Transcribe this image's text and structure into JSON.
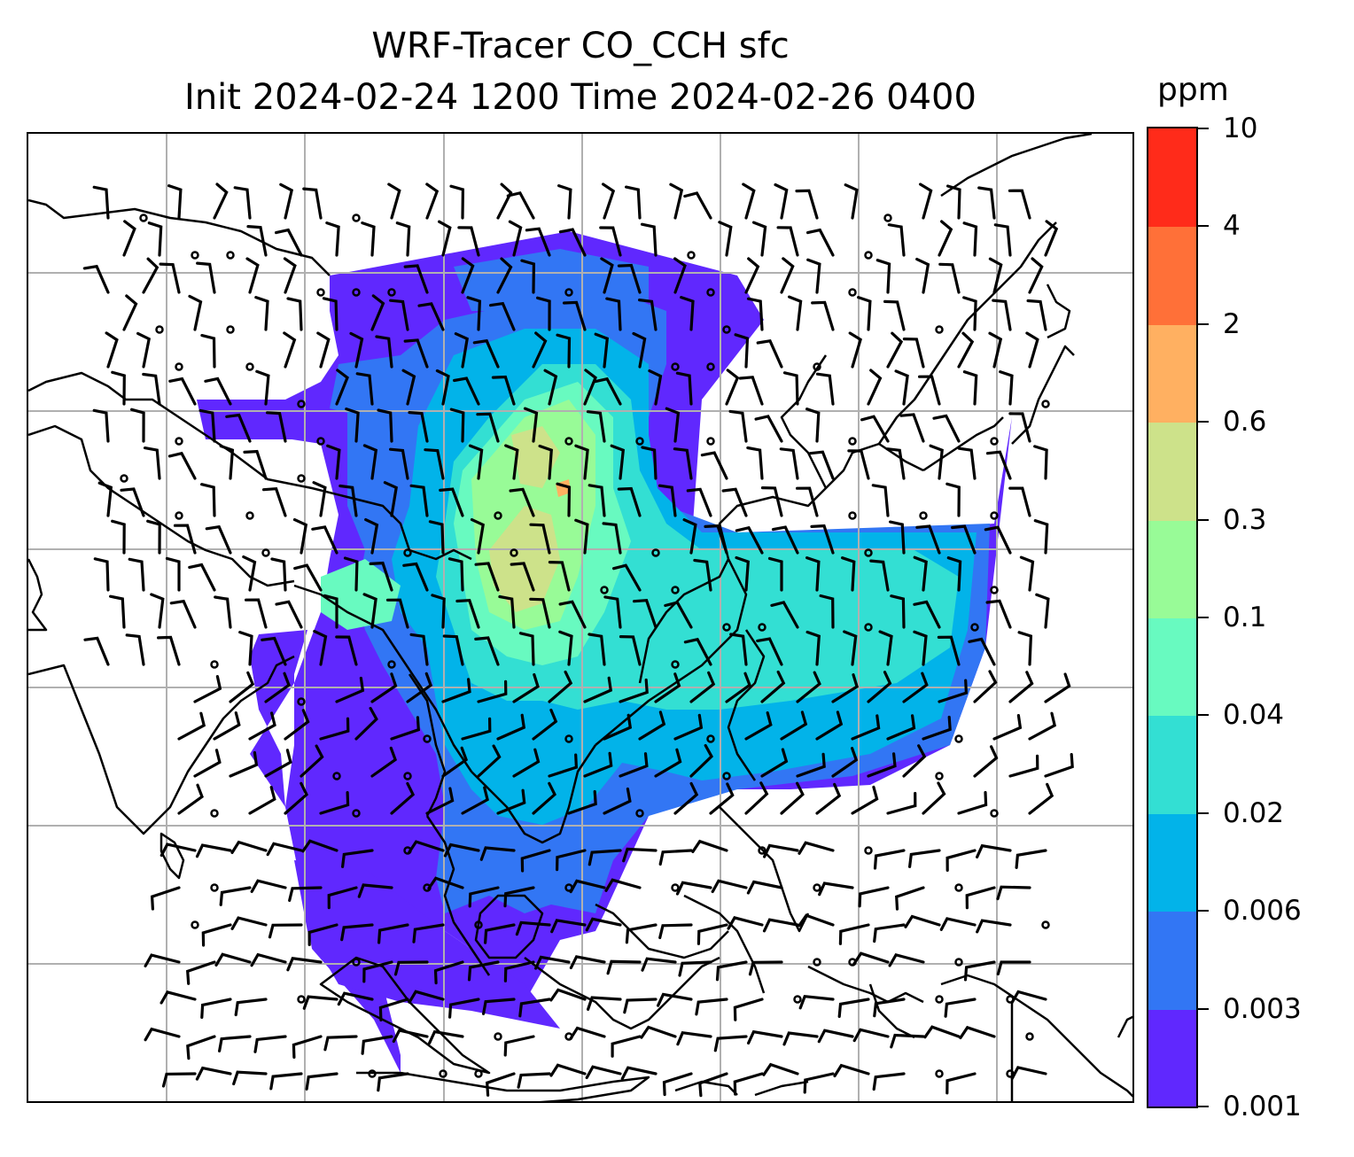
{
  "title": {
    "line1": "WRF-Tracer CO_CCH sfc",
    "line2": "Init 2024-02-24 1200 Time 2024-02-26 0400"
  },
  "colorbar": {
    "unit": "ppm",
    "tick_labels": [
      "0.001",
      "0.003",
      "0.006",
      "0.02",
      "0.04",
      "0.1",
      "0.3",
      "0.6",
      "2",
      "4",
      "10"
    ],
    "colors": [
      "#6028fe",
      "#3276f4",
      "#02b3e9",
      "#33dfd3",
      "#68fac0",
      "#98fb97",
      "#cde28a",
      "#ffb061",
      "#ff7038",
      "#ff2b1a"
    ]
  },
  "map": {
    "projection": "lat-lon",
    "gridlines": true,
    "gridline_color": "#b0b0b0",
    "coastline_color": "#000000",
    "tracer_field": "CO_CCH surface concentration",
    "wind_symbol": "barbs",
    "calm_symbol": "circle"
  }
}
